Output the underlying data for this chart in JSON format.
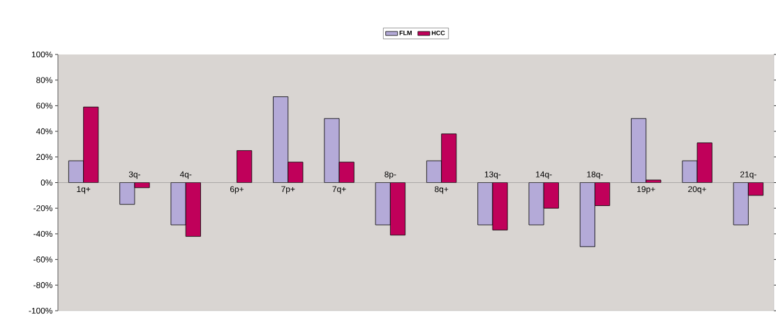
{
  "chart_data": {
    "type": "bar",
    "categories": [
      "1q+",
      "3q-",
      "4q-",
      "6p+",
      "7p+",
      "7q+",
      "8p-",
      "8q+",
      "13q-",
      "14q-",
      "18q-",
      "19p+",
      "20q+",
      "21q-"
    ],
    "series": [
      {
        "name": "FLM",
        "color": "#b4aad8",
        "values": [
          17,
          -17,
          -33,
          null,
          67,
          50,
          -33,
          17,
          -33,
          -33,
          -50,
          50,
          17,
          -33
        ]
      },
      {
        "name": "HCC",
        "color": "#c0005a",
        "values": [
          59,
          -4,
          -42,
          25,
          16,
          16,
          -41,
          38,
          -37,
          -20,
          -18,
          2,
          31,
          -10
        ]
      }
    ],
    "ylim": [
      -100,
      100
    ],
    "yticks": [
      {
        "value": -100,
        "label": "-100%"
      },
      {
        "value": -80,
        "label": "-80%"
      },
      {
        "value": -60,
        "label": "-60%"
      },
      {
        "value": -40,
        "label": "-40%"
      },
      {
        "value": -20,
        "label": "-20%"
      },
      {
        "value": 0,
        "label": "0%"
      },
      {
        "value": 20,
        "label": "20%"
      },
      {
        "value": 40,
        "label": "40%"
      },
      {
        "value": 60,
        "label": "60%"
      },
      {
        "value": 80,
        "label": "80%"
      },
      {
        "value": 100,
        "label": "100%"
      }
    ],
    "grid": false,
    "legend": "top"
  }
}
